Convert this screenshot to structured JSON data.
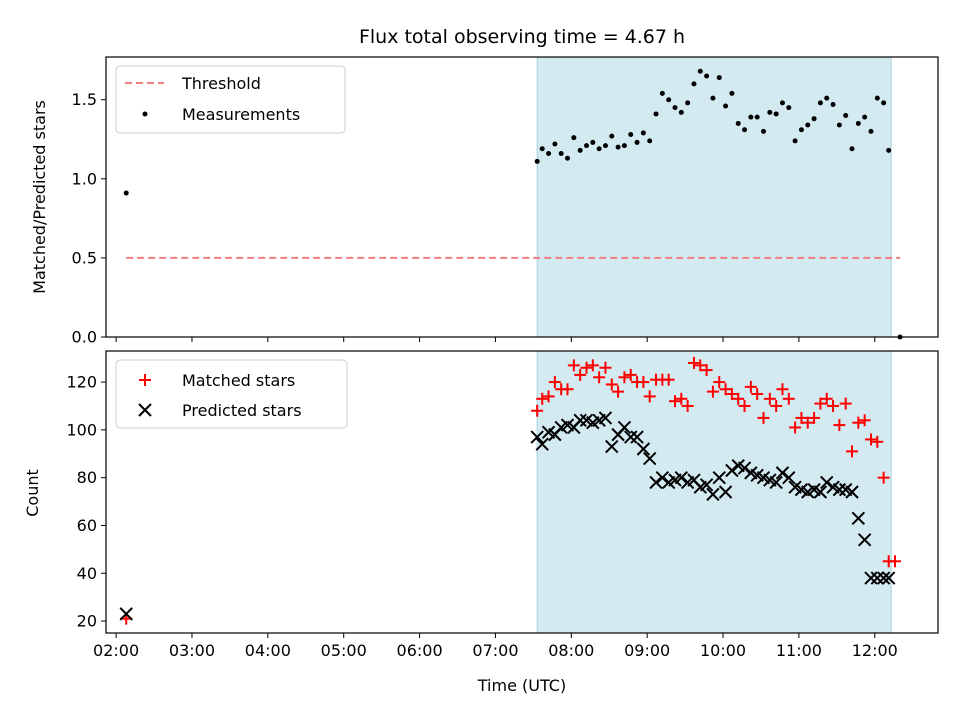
{
  "chart_data": [
    {
      "type": "scatter",
      "title": "Flux total observing time = 4.67 h",
      "xlabel": "",
      "ylabel": "Matched/Predicted stars",
      "xlim": [
        "01:52",
        "12:50"
      ],
      "ylim": [
        0,
        1.77
      ],
      "yticks": [
        0.0,
        0.5,
        1.0,
        1.5
      ],
      "ytick_labels": [
        "0.0",
        "0.5",
        "1.0",
        "1.5"
      ],
      "shaded_span": {
        "x0": "07:33",
        "x1": "12:13",
        "color": "#d3eaf1"
      },
      "legend_position": "upper-left",
      "threshold": {
        "name": "Threshold",
        "value": 0.5,
        "x0": "02:08",
        "x1": "12:20",
        "color": "#f08080"
      },
      "series": [
        {
          "name": "Measurements",
          "color": "#000000",
          "x": [
            "02:08",
            "07:33",
            "07:37",
            "07:42",
            "07:47",
            "07:52",
            "07:57",
            "08:02",
            "08:07",
            "08:12",
            "08:17",
            "08:22",
            "08:27",
            "08:32",
            "08:37",
            "08:42",
            "08:47",
            "08:52",
            "08:57",
            "09:02",
            "09:07",
            "09:12",
            "09:17",
            "09:22",
            "09:27",
            "09:32",
            "09:37",
            "09:42",
            "09:47",
            "09:52",
            "09:57",
            "10:02",
            "10:07",
            "10:12",
            "10:17",
            "10:22",
            "10:27",
            "10:32",
            "10:37",
            "10:42",
            "10:47",
            "10:52",
            "10:57",
            "11:02",
            "11:07",
            "11:12",
            "11:17",
            "11:22",
            "11:27",
            "11:32",
            "11:37",
            "11:42",
            "11:47",
            "11:52",
            "11:57",
            "12:02",
            "12:07",
            "12:11",
            "12:20"
          ],
          "values": [
            0.91,
            1.11,
            1.19,
            1.16,
            1.22,
            1.16,
            1.13,
            1.26,
            1.18,
            1.21,
            1.23,
            1.19,
            1.21,
            1.27,
            1.2,
            1.21,
            1.28,
            1.23,
            1.29,
            1.24,
            1.41,
            1.54,
            1.5,
            1.45,
            1.42,
            1.48,
            1.6,
            1.68,
            1.65,
            1.51,
            1.64,
            1.46,
            1.54,
            1.35,
            1.31,
            1.39,
            1.39,
            1.3,
            1.42,
            1.41,
            1.48,
            1.45,
            1.24,
            1.31,
            1.34,
            1.38,
            1.48,
            1.51,
            1.47,
            1.34,
            1.4,
            1.19,
            1.35,
            1.39,
            1.3,
            1.51,
            1.48,
            1.18,
            0.0
          ]
        }
      ]
    },
    {
      "type": "scatter",
      "title": "",
      "xlabel": "Time (UTC)",
      "ylabel": "Count",
      "xlim": [
        "01:52",
        "12:50"
      ],
      "ylim": [
        15,
        133
      ],
      "xticks": [
        "02:00",
        "03:00",
        "04:00",
        "05:00",
        "06:00",
        "07:00",
        "08:00",
        "09:00",
        "10:00",
        "11:00",
        "12:00"
      ],
      "yticks": [
        20,
        40,
        60,
        80,
        100,
        120
      ],
      "shaded_span": {
        "x0": "07:33",
        "x1": "12:13",
        "color": "#d3eaf1"
      },
      "legend_position": "upper-left",
      "series": [
        {
          "name": "Matched stars",
          "marker": "plus",
          "color": "#ff0000",
          "x": [
            "02:08",
            "07:33",
            "07:37",
            "07:42",
            "07:47",
            "07:52",
            "07:57",
            "08:02",
            "08:07",
            "08:12",
            "08:17",
            "08:22",
            "08:27",
            "08:32",
            "08:37",
            "08:42",
            "08:47",
            "08:52",
            "08:57",
            "09:02",
            "09:07",
            "09:12",
            "09:17",
            "09:22",
            "09:27",
            "09:32",
            "09:37",
            "09:42",
            "09:47",
            "09:52",
            "09:57",
            "10:02",
            "10:07",
            "10:12",
            "10:17",
            "10:22",
            "10:27",
            "10:32",
            "10:37",
            "10:42",
            "10:47",
            "10:52",
            "10:57",
            "11:02",
            "11:07",
            "11:12",
            "11:17",
            "11:22",
            "11:27",
            "11:32",
            "11:37",
            "11:42",
            "11:47",
            "11:52",
            "11:57",
            "12:02",
            "12:07",
            "12:11",
            "12:16"
          ],
          "values": [
            21,
            108,
            113,
            114,
            120,
            117,
            117,
            127,
            123,
            126,
            127,
            122,
            126,
            119,
            116,
            122,
            123,
            120,
            120,
            114,
            121,
            121,
            121,
            112,
            113,
            110,
            128,
            127,
            125,
            116,
            120,
            117,
            115,
            113,
            110,
            118,
            115,
            105,
            113,
            110,
            117,
            113,
            101,
            105,
            103,
            105,
            111,
            113,
            110,
            102,
            111,
            91,
            103,
            104,
            96,
            95,
            80,
            45,
            45
          ]
        },
        {
          "name": "Predicted stars",
          "marker": "x",
          "color": "#000000",
          "x": [
            "02:08",
            "07:33",
            "07:37",
            "07:42",
            "07:47",
            "07:52",
            "07:57",
            "08:02",
            "08:07",
            "08:12",
            "08:17",
            "08:22",
            "08:27",
            "08:32",
            "08:37",
            "08:42",
            "08:47",
            "08:52",
            "08:57",
            "09:02",
            "09:07",
            "09:12",
            "09:17",
            "09:22",
            "09:27",
            "09:32",
            "09:37",
            "09:42",
            "09:47",
            "09:52",
            "09:57",
            "10:02",
            "10:07",
            "10:12",
            "10:17",
            "10:22",
            "10:27",
            "10:32",
            "10:37",
            "10:42",
            "10:47",
            "10:52",
            "10:57",
            "11:02",
            "11:07",
            "11:12",
            "11:17",
            "11:22",
            "11:27",
            "11:32",
            "11:37",
            "11:42",
            "11:47",
            "11:52",
            "11:57",
            "12:02",
            "12:07",
            "12:11"
          ],
          "values": [
            23,
            97,
            94,
            99,
            98,
            101,
            102,
            101,
            104,
            104,
            103,
            104,
            105,
            93,
            98,
            101,
            97,
            97,
            92,
            88,
            78,
            80,
            78,
            79,
            80,
            78,
            79,
            76,
            77,
            73,
            80,
            74,
            83,
            85,
            84,
            82,
            81,
            80,
            79,
            78,
            82,
            80,
            76,
            75,
            74,
            75,
            74,
            78,
            76,
            75,
            75,
            74,
            63,
            54,
            38,
            38,
            38,
            38
          ]
        }
      ]
    }
  ]
}
